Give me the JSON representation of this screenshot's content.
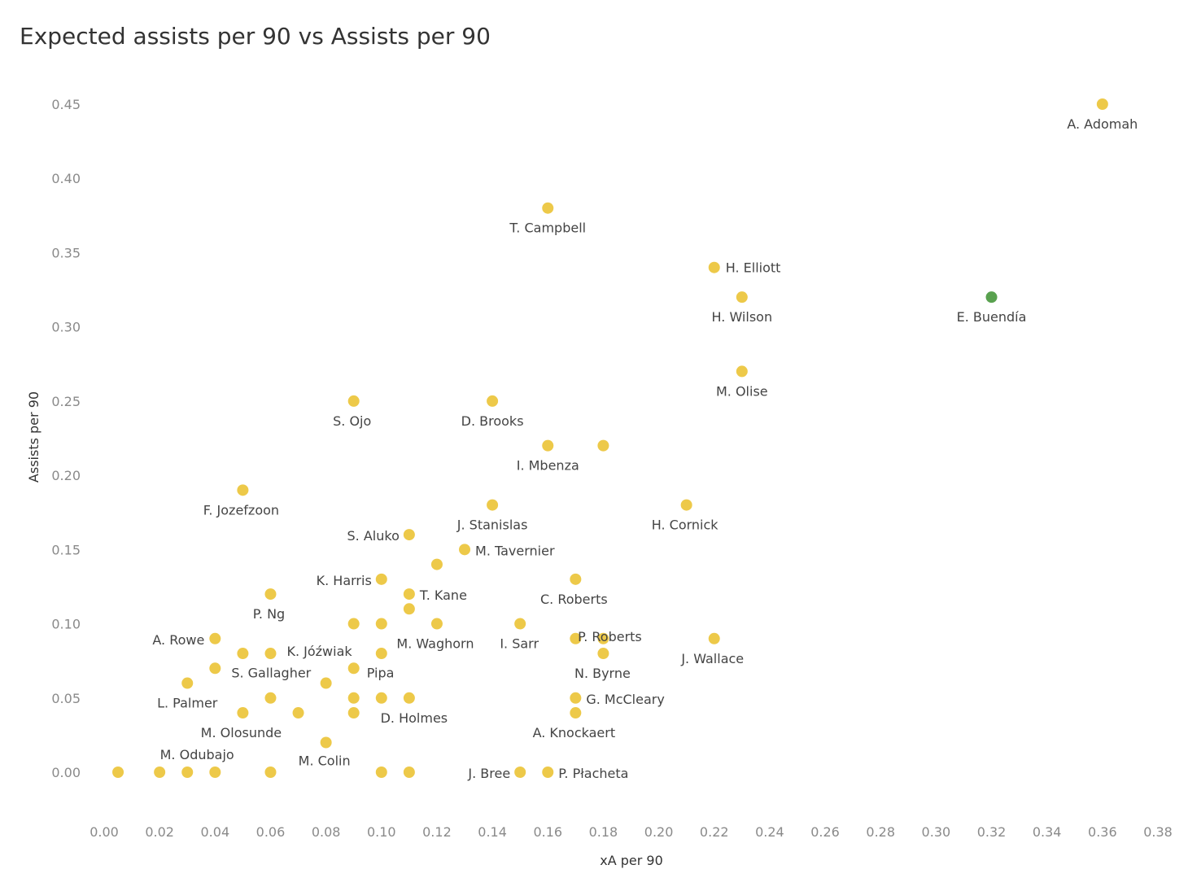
{
  "chart_data": {
    "type": "scatter",
    "title": "Expected assists per 90 vs Assists per 90",
    "xlabel": "xA per 90",
    "ylabel": "Assists per 90",
    "xlim": [
      0.0,
      0.38
    ],
    "ylim": [
      0.0,
      0.45
    ],
    "x_ticks": [
      "0.00",
      "0.02",
      "0.04",
      "0.06",
      "0.08",
      "0.10",
      "0.12",
      "0.14",
      "0.16",
      "0.18",
      "0.20",
      "0.22",
      "0.24",
      "0.26",
      "0.28",
      "0.30",
      "0.32",
      "0.34",
      "0.36",
      "0.38"
    ],
    "y_ticks": [
      "0.00",
      "0.05",
      "0.10",
      "0.15",
      "0.20",
      "0.25",
      "0.30",
      "0.35",
      "0.40",
      "0.45"
    ],
    "grid": false,
    "colors": {
      "default": "#edc949",
      "highlight": "#59a14f"
    },
    "points": [
      {
        "x": 0.36,
        "y": 0.45,
        "label": "A. Adomah"
      },
      {
        "x": 0.32,
        "y": 0.32,
        "label": "E. Buendía",
        "highlight": true
      },
      {
        "x": 0.16,
        "y": 0.38,
        "label": "T. Campbell"
      },
      {
        "x": 0.22,
        "y": 0.34,
        "label": "H. Elliott"
      },
      {
        "x": 0.23,
        "y": 0.32,
        "label": "H. Wilson"
      },
      {
        "x": 0.23,
        "y": 0.27,
        "label": "M. Olise"
      },
      {
        "x": 0.09,
        "y": 0.25,
        "label": "S. Ojo"
      },
      {
        "x": 0.14,
        "y": 0.25,
        "label": "D. Brooks"
      },
      {
        "x": 0.16,
        "y": 0.22,
        "label": "I. Mbenza"
      },
      {
        "x": 0.18,
        "y": 0.22,
        "label": ""
      },
      {
        "x": 0.05,
        "y": 0.19,
        "label": "F. Jozefzoon"
      },
      {
        "x": 0.14,
        "y": 0.18,
        "label": "J. Stanislas"
      },
      {
        "x": 0.21,
        "y": 0.18,
        "label": "H. Cornick"
      },
      {
        "x": 0.11,
        "y": 0.16,
        "label": "S. Aluko"
      },
      {
        "x": 0.13,
        "y": 0.15,
        "label": "M. Tavernier"
      },
      {
        "x": 0.12,
        "y": 0.14,
        "label": ""
      },
      {
        "x": 0.1,
        "y": 0.13,
        "label": "K. Harris"
      },
      {
        "x": 0.17,
        "y": 0.13,
        "label": "C. Roberts"
      },
      {
        "x": 0.06,
        "y": 0.12,
        "label": "P. Ng"
      },
      {
        "x": 0.11,
        "y": 0.12,
        "label": "T. Kane"
      },
      {
        "x": 0.11,
        "y": 0.11,
        "label": ""
      },
      {
        "x": 0.09,
        "y": 0.1,
        "label": ""
      },
      {
        "x": 0.1,
        "y": 0.1,
        "label": ""
      },
      {
        "x": 0.12,
        "y": 0.1,
        "label": "M. Waghorn"
      },
      {
        "x": 0.15,
        "y": 0.1,
        "label": "I. Sarr"
      },
      {
        "x": 0.04,
        "y": 0.09,
        "label": "A. Rowe"
      },
      {
        "x": 0.17,
        "y": 0.09,
        "label": ""
      },
      {
        "x": 0.18,
        "y": 0.09,
        "label": "P. Roberts"
      },
      {
        "x": 0.22,
        "y": 0.09,
        "label": "J. Wallace"
      },
      {
        "x": 0.05,
        "y": 0.08,
        "label": ""
      },
      {
        "x": 0.06,
        "y": 0.08,
        "label": "K. Jóźwiak"
      },
      {
        "x": 0.1,
        "y": 0.08,
        "label": ""
      },
      {
        "x": 0.18,
        "y": 0.08,
        "label": "N. Byrne"
      },
      {
        "x": 0.04,
        "y": 0.07,
        "label": "S. Gallagher"
      },
      {
        "x": 0.09,
        "y": 0.07,
        "label": "Pipa"
      },
      {
        "x": 0.03,
        "y": 0.06,
        "label": "L. Palmer"
      },
      {
        "x": 0.08,
        "y": 0.06,
        "label": ""
      },
      {
        "x": 0.06,
        "y": 0.05,
        "label": ""
      },
      {
        "x": 0.09,
        "y": 0.05,
        "label": ""
      },
      {
        "x": 0.1,
        "y": 0.05,
        "label": ""
      },
      {
        "x": 0.11,
        "y": 0.05,
        "label": "D. Holmes"
      },
      {
        "x": 0.17,
        "y": 0.05,
        "label": "G. McCleary"
      },
      {
        "x": 0.05,
        "y": 0.04,
        "label": "M. Olosunde"
      },
      {
        "x": 0.07,
        "y": 0.04,
        "label": ""
      },
      {
        "x": 0.09,
        "y": 0.04,
        "label": ""
      },
      {
        "x": 0.17,
        "y": 0.04,
        "label": "A. Knockaert"
      },
      {
        "x": 0.08,
        "y": 0.02,
        "label": "M. Colin"
      },
      {
        "x": 0.005,
        "y": 0.0,
        "label": ""
      },
      {
        "x": 0.02,
        "y": 0.0,
        "label": "M. Odubajo"
      },
      {
        "x": 0.03,
        "y": 0.0,
        "label": ""
      },
      {
        "x": 0.04,
        "y": 0.0,
        "label": ""
      },
      {
        "x": 0.06,
        "y": 0.0,
        "label": ""
      },
      {
        "x": 0.1,
        "y": 0.0,
        "label": ""
      },
      {
        "x": 0.11,
        "y": 0.0,
        "label": ""
      },
      {
        "x": 0.15,
        "y": 0.0,
        "label": "J. Bree"
      },
      {
        "x": 0.16,
        "y": 0.0,
        "label": "P. Płacheta"
      }
    ]
  }
}
